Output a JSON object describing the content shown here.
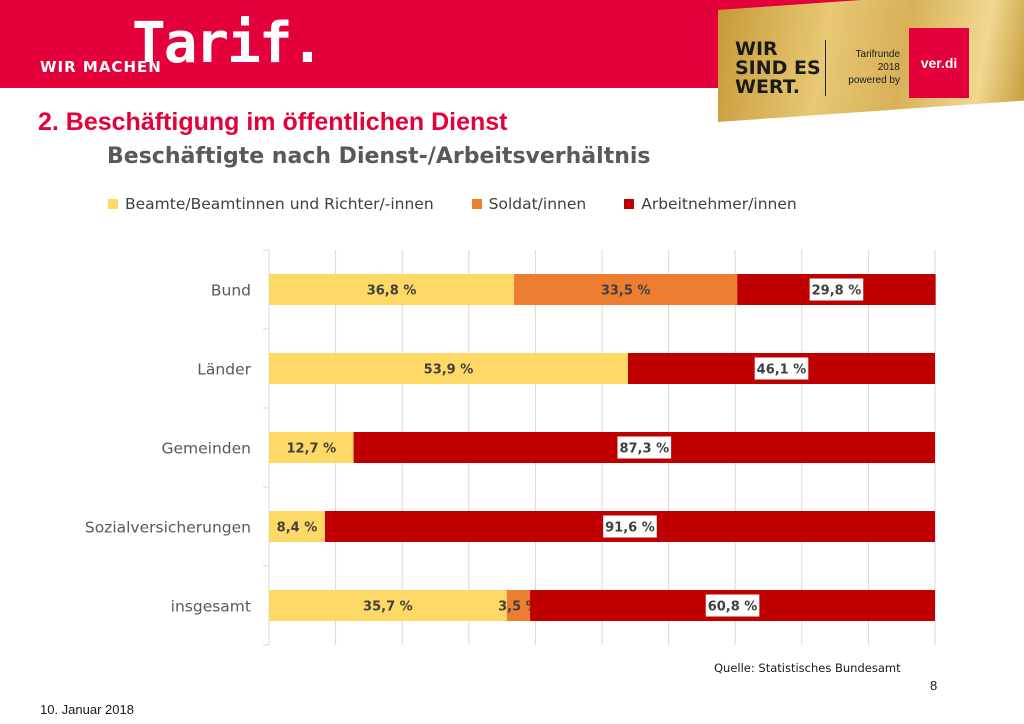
{
  "header": {
    "wir_machen": "WIR MACHEN",
    "tarif": "Tarif.",
    "campaign": "WIR SINDES WERT.",
    "campaign_line1": "WIR",
    "campaign_line2": "SIND ES",
    "campaign_line3": "WERT.",
    "tarifrunde_line1": "Tarifrunde 2018",
    "tarifrunde_line2": "powered by",
    "verdi": "ver.di",
    "banner_color": "#e4003a"
  },
  "slide": {
    "title": "2. Beschäftigung im öffentlichen Dienst",
    "subtitle": "Beschäftigte nach Dienst-/Arbeitsverhältnis",
    "source": "Quelle: Statistisches Bundesamt",
    "page_number": "8",
    "date": "10. Januar 2018"
  },
  "chart_data": {
    "type": "bar",
    "orientation": "horizontal",
    "stacked": true,
    "categories": [
      "Bund",
      "Länder",
      "Gemeinden",
      "Sozialversicherungen",
      "insgesamt"
    ],
    "series": [
      {
        "name": "Beamte/Beamtinnen und Richter/-innen",
        "color": "#ffd966",
        "values": [
          36.8,
          53.9,
          12.7,
          8.4,
          35.7
        ],
        "labels": [
          "36,8 %",
          "53,9 %",
          "12,7 %",
          "8,4 %",
          "35,7 %"
        ]
      },
      {
        "name": "Soldat/innen",
        "color": "#ed7d31",
        "values": [
          33.5,
          0,
          0,
          0,
          3.5
        ],
        "labels": [
          "33,5 %",
          "",
          "",
          "",
          "3,5 %"
        ]
      },
      {
        "name": "Arbeitnehmer/innen",
        "color": "#c00000",
        "values": [
          29.8,
          46.1,
          87.3,
          91.6,
          60.8
        ],
        "labels": [
          "29,8 %",
          "46,1 %",
          "87,3 %",
          "91,6 %",
          "60,8 %"
        ]
      }
    ],
    "xlim": [
      0,
      100
    ],
    "grid": true,
    "legend": "top"
  }
}
